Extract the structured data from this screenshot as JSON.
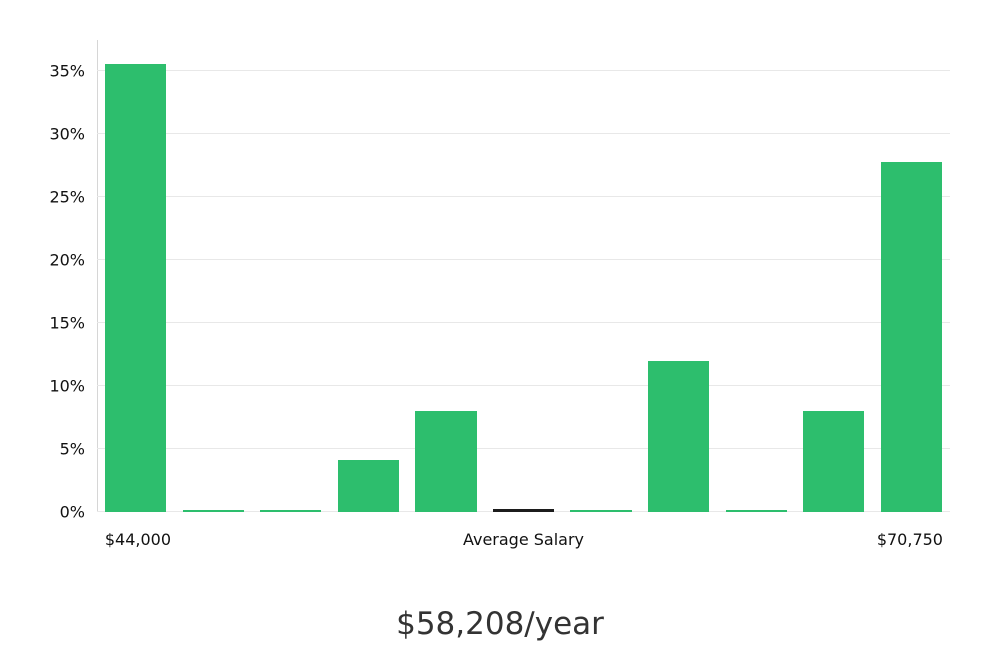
{
  "chart_data": {
    "type": "bar",
    "title": "$58,208/year",
    "values": [
      35.6,
      0.15,
      0.15,
      4.1,
      8.0,
      0.2,
      0.15,
      12.0,
      0.15,
      8.0,
      27.8
    ],
    "marker_index": 5,
    "bar_color": "#2dbe6d",
    "marker_color": "#1c1c1c",
    "ylim": [
      0,
      37.5
    ],
    "ylabel": "",
    "xlabel": "",
    "grid": true,
    "legend": "none",
    "yticks": [
      {
        "value": 0,
        "label": "0%"
      },
      {
        "value": 5,
        "label": "5%"
      },
      {
        "value": 10,
        "label": "10%"
      },
      {
        "value": 15,
        "label": "15%"
      },
      {
        "value": 20,
        "label": "20%"
      },
      {
        "value": 25,
        "label": "25%"
      },
      {
        "value": 30,
        "label": "30%"
      },
      {
        "value": 35,
        "label": "35%"
      }
    ],
    "x_axis_labels": [
      {
        "text": "$44,000",
        "position_pct": 4.8
      },
      {
        "text": "Average Salary",
        "position_pct": 50
      },
      {
        "text": "$70,750",
        "position_pct": 95.3
      }
    ]
  }
}
